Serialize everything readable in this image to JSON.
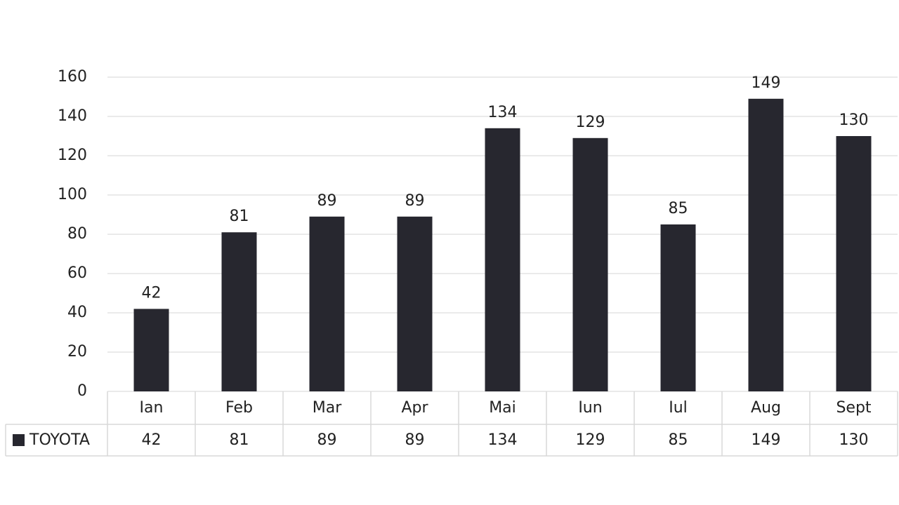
{
  "chart_data": {
    "type": "bar",
    "categories": [
      "Ian",
      "Feb",
      "Mar",
      "Apr",
      "Mai",
      "Iun",
      "Iul",
      "Aug",
      "Sept"
    ],
    "series": [
      {
        "name": "TOYOTA",
        "color": "#27272f",
        "values": [
          42,
          81,
          89,
          89,
          134,
          129,
          85,
          149,
          130
        ]
      }
    ],
    "ylim": [
      0,
      160
    ],
    "yticks": [
      0,
      20,
      40,
      60,
      80,
      100,
      120,
      140,
      160
    ],
    "grid": true,
    "data_labels": true,
    "data_table": true
  }
}
